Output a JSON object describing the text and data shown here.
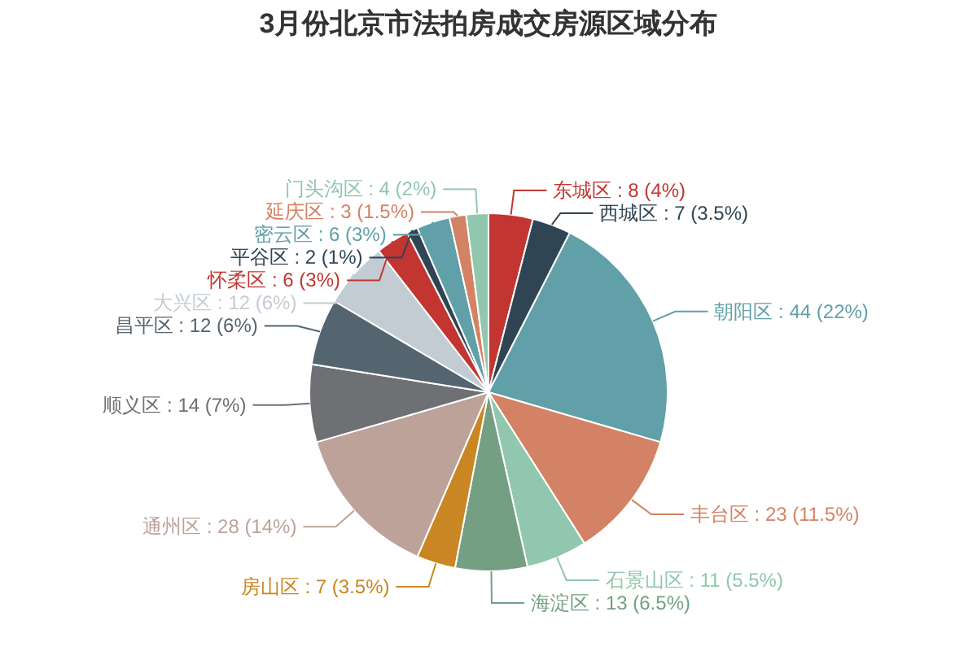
{
  "chart_data": {
    "type": "pie",
    "title": "3月份北京市法拍房成交房源区域分布",
    "categories": [
      "东城区",
      "西城区",
      "朝阳区",
      "丰台区",
      "石景山区",
      "海淀区",
      "房山区",
      "通州区",
      "顺义区",
      "昌平区",
      "大兴区",
      "怀柔区",
      "平谷区",
      "密云区",
      "延庆区",
      "门头沟区"
    ],
    "values": [
      8,
      7,
      44,
      23,
      11,
      13,
      7,
      28,
      14,
      12,
      12,
      6,
      2,
      6,
      3,
      4
    ],
    "value_labels": [
      "8 (4%)",
      "7 (3.5%)",
      "44 (22%)",
      "23 (11.5%)",
      "11 (5.5%)",
      "13 (6.5%)",
      "7 (3.5%)",
      "28 (14%)",
      "14 (7%)",
      "12 (6%)",
      "12 (6%)",
      "6 (3%)",
      "2 (1%)",
      "6 (3%)",
      "3 (1.5%)",
      "4 (2%)"
    ],
    "colors": [
      "#c23531",
      "#2f4554",
      "#61a0a8",
      "#d48265",
      "#91c7ae",
      "#749f83",
      "#ca8622",
      "#bda29a",
      "#6e7074",
      "#546570",
      "#c4ccd3",
      "#c23531",
      "#2f4554",
      "#61a0a8",
      "#d48265",
      "#91c7ae"
    ]
  }
}
